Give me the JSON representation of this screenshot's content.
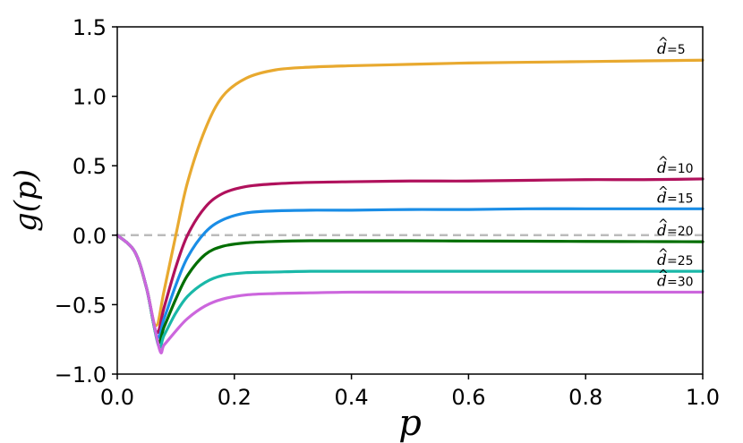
{
  "chart_data": {
    "type": "line",
    "xlabel": "p",
    "ylabel": "g(p)",
    "xlim": [
      0.0,
      1.0
    ],
    "ylim": [
      -1.0,
      1.5
    ],
    "xticks": [
      "0.0",
      "0.2",
      "0.4",
      "0.6",
      "0.8",
      "1.0"
    ],
    "yticks": [
      "1.5",
      "1.0",
      "0.5",
      "0.0",
      "−0.5",
      "−1.0"
    ],
    "xtick_values": [
      0.0,
      0.2,
      0.4,
      0.6,
      0.8,
      1.0
    ],
    "ytick_values": [
      1.5,
      1.0,
      0.5,
      0.0,
      -0.5,
      -1.0
    ],
    "grid": false,
    "reference_line": {
      "y": 0.0,
      "style": "dashed",
      "color": "#bbbbbb"
    },
    "series": [
      {
        "name": "d̂=5",
        "label_text": "=5",
        "color": "#e8a92f",
        "x": [
          0.0,
          0.03,
          0.05,
          0.066,
          0.08,
          0.1,
          0.12,
          0.15,
          0.18,
          0.22,
          0.27,
          0.33,
          0.4,
          0.5,
          0.6,
          0.7,
          0.8,
          0.9,
          1.0
        ],
        "y": [
          0.0,
          -0.12,
          -0.38,
          -0.65,
          -0.4,
          0.0,
          0.38,
          0.76,
          1.0,
          1.13,
          1.19,
          1.21,
          1.22,
          1.23,
          1.24,
          1.245,
          1.25,
          1.255,
          1.26
        ]
      },
      {
        "name": "d̂=10",
        "label_text": "=10",
        "color": "#b0115c",
        "x": [
          0.0,
          0.03,
          0.05,
          0.067,
          0.08,
          0.1,
          0.12,
          0.15,
          0.18,
          0.22,
          0.27,
          0.33,
          0.4,
          0.5,
          0.6,
          0.7,
          0.8,
          0.9,
          1.0
        ],
        "y": [
          0.0,
          -0.12,
          -0.38,
          -0.7,
          -0.52,
          -0.23,
          0.0,
          0.2,
          0.3,
          0.35,
          0.37,
          0.38,
          0.385,
          0.39,
          0.39,
          0.395,
          0.4,
          0.4,
          0.405
        ]
      },
      {
        "name": "d̂=15",
        "label_text": "=15",
        "color": "#1a8de6",
        "x": [
          0.0,
          0.03,
          0.05,
          0.068,
          0.08,
          0.1,
          0.12,
          0.15,
          0.18,
          0.22,
          0.27,
          0.33,
          0.4,
          0.5,
          0.6,
          0.7,
          0.8,
          0.9,
          1.0
        ],
        "y": [
          0.0,
          -0.12,
          -0.38,
          -0.73,
          -0.6,
          -0.36,
          -0.16,
          0.02,
          0.11,
          0.16,
          0.175,
          0.18,
          0.18,
          0.185,
          0.185,
          0.19,
          0.19,
          0.19,
          0.19
        ]
      },
      {
        "name": "d̂=20",
        "label_text": "=20",
        "color": "#006e00",
        "x": [
          0.0,
          0.03,
          0.05,
          0.069,
          0.08,
          0.1,
          0.12,
          0.15,
          0.18,
          0.22,
          0.27,
          0.33,
          0.4,
          0.5,
          0.6,
          0.7,
          0.8,
          0.9,
          1.0
        ],
        "y": [
          0.0,
          -0.12,
          -0.38,
          -0.76,
          -0.66,
          -0.46,
          -0.29,
          -0.14,
          -0.08,
          -0.055,
          -0.045,
          -0.04,
          -0.04,
          -0.04,
          -0.042,
          -0.043,
          -0.045,
          -0.046,
          -0.047
        ]
      },
      {
        "name": "d̂=25",
        "label_text": "=25",
        "color": "#1ab8a8",
        "x": [
          0.0,
          0.03,
          0.05,
          0.07,
          0.08,
          0.1,
          0.12,
          0.15,
          0.18,
          0.22,
          0.27,
          0.33,
          0.4,
          0.5,
          0.6,
          0.7,
          0.8,
          0.9,
          1.0
        ],
        "y": [
          0.0,
          -0.12,
          -0.38,
          -0.79,
          -0.72,
          -0.56,
          -0.44,
          -0.34,
          -0.29,
          -0.27,
          -0.265,
          -0.26,
          -0.26,
          -0.26,
          -0.26,
          -0.26,
          -0.26,
          -0.26,
          -0.26
        ]
      },
      {
        "name": "d̂=30",
        "label_text": "=30",
        "color": "#cc66dd",
        "x": [
          0.0,
          0.03,
          0.05,
          0.072,
          0.08,
          0.1,
          0.12,
          0.15,
          0.18,
          0.22,
          0.27,
          0.33,
          0.4,
          0.5,
          0.6,
          0.7,
          0.8,
          0.9,
          1.0
        ],
        "y": [
          0.0,
          -0.12,
          -0.38,
          -0.82,
          -0.79,
          -0.69,
          -0.6,
          -0.51,
          -0.46,
          -0.43,
          -0.42,
          -0.415,
          -0.41,
          -0.41,
          -0.41,
          -0.41,
          -0.41,
          -0.41,
          -0.41
        ]
      }
    ]
  }
}
